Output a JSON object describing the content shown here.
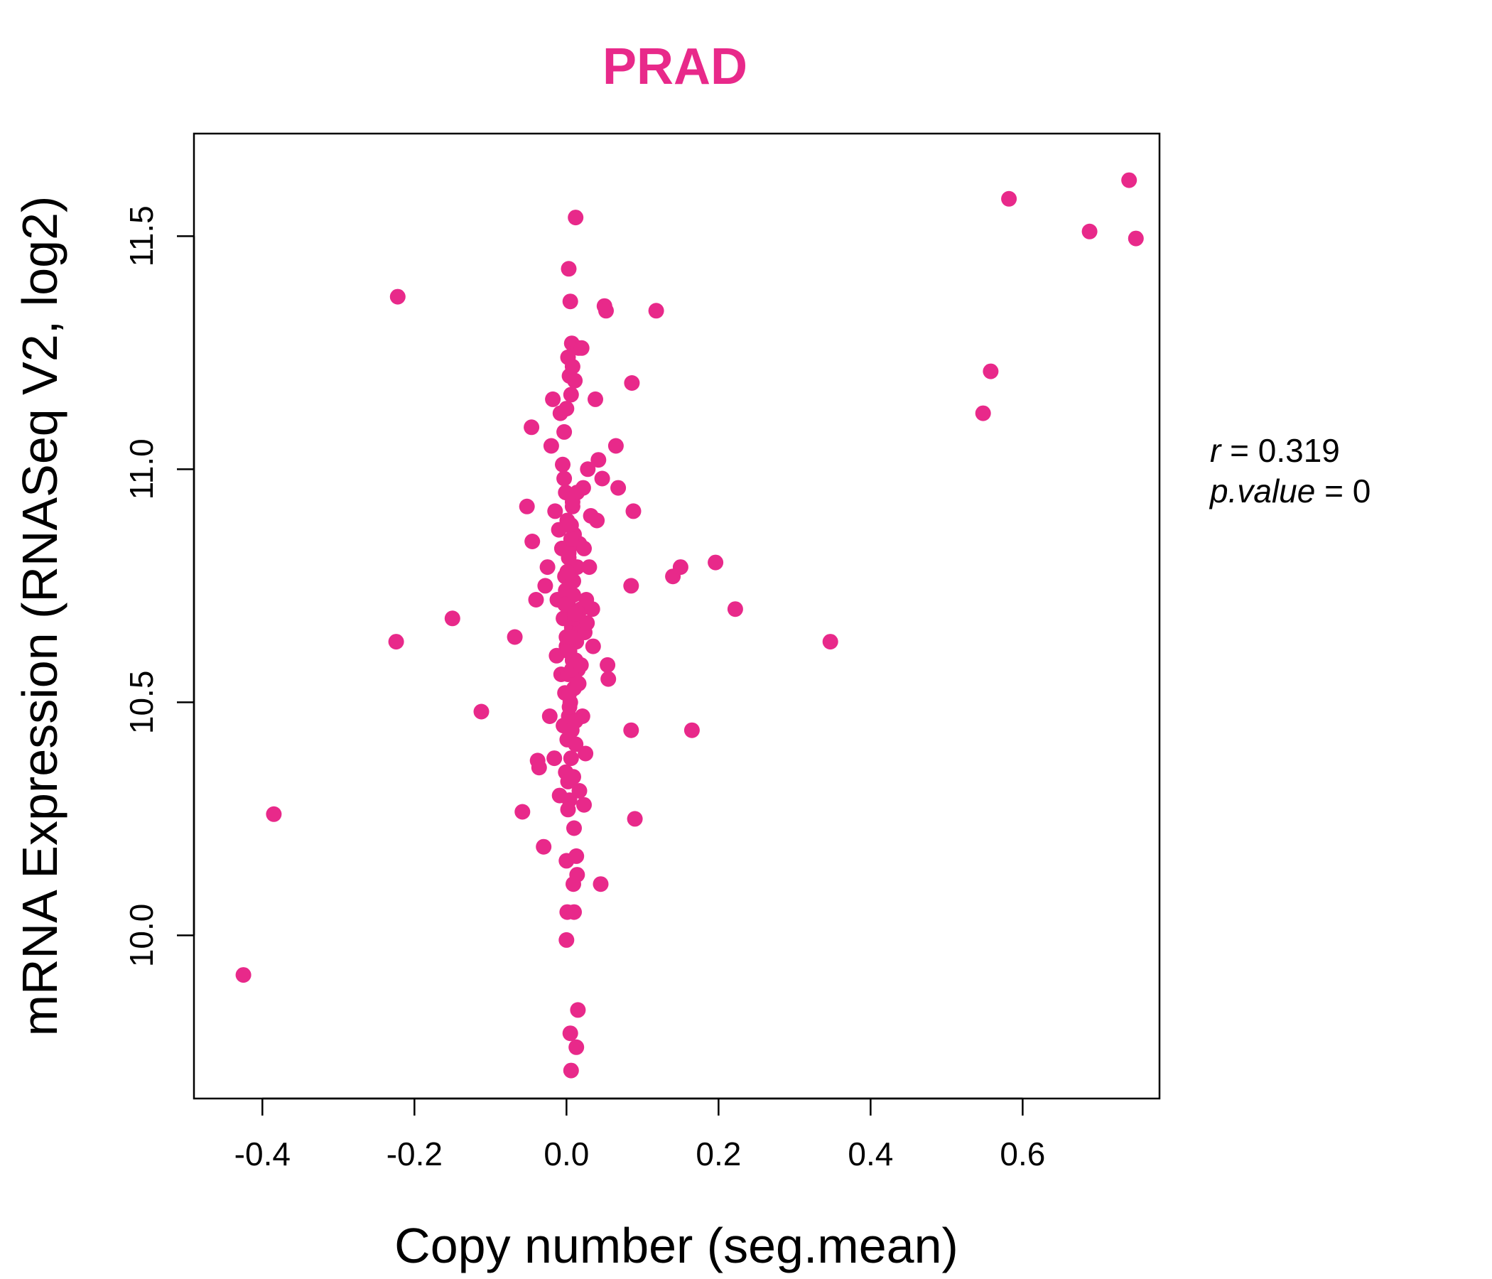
{
  "chart_data": {
    "type": "scatter",
    "title": "PRAD",
    "xlabel": "Copy number (seg.mean)",
    "ylabel": "mRNA Expression (RNASeq V2, log2)",
    "xlim": [
      -0.49,
      0.78
    ],
    "ylim": [
      9.65,
      11.72
    ],
    "xticks": [
      "-0.4",
      "-0.2",
      "0.0",
      "0.2",
      "0.4",
      "0.6"
    ],
    "yticks": [
      "10.0",
      "10.5",
      "11.0",
      "11.5"
    ],
    "color": "#e8298a",
    "grid": false,
    "stats": {
      "r_label": "r",
      "r_value": "0.319",
      "p_label": "p.value",
      "p_value": "0"
    },
    "x": [
      -0.425,
      -0.385,
      -0.222,
      -0.224,
      -0.15,
      -0.112,
      -0.068,
      -0.058,
      -0.052,
      -0.046,
      -0.045,
      -0.04,
      -0.038,
      -0.036,
      -0.03,
      -0.028,
      -0.025,
      -0.022,
      -0.02,
      -0.018,
      -0.016,
      -0.015,
      -0.013,
      -0.012,
      -0.01,
      -0.009,
      -0.008,
      -0.007,
      -0.006,
      -0.005,
      -0.004,
      -0.004,
      -0.003,
      -0.003,
      -0.002,
      -0.002,
      -0.001,
      -0.001,
      0.0,
      0.0,
      0.0,
      0.0,
      0.001,
      0.001,
      0.001,
      0.002,
      0.002,
      0.002,
      0.002,
      0.003,
      0.003,
      0.003,
      0.004,
      0.004,
      0.004,
      0.005,
      0.005,
      0.005,
      0.006,
      0.006,
      0.006,
      0.007,
      0.007,
      0.007,
      0.008,
      0.008,
      0.008,
      0.009,
      0.009,
      0.01,
      0.01,
      0.01,
      0.011,
      0.011,
      0.012,
      0.012,
      0.013,
      0.013,
      0.014,
      0.014,
      0.015,
      0.015,
      0.016,
      0.017,
      0.017,
      0.018,
      0.019,
      0.02,
      0.021,
      0.022,
      0.023,
      0.024,
      0.025,
      0.026,
      0.028,
      0.03,
      0.032,
      0.034,
      0.035,
      0.038,
      0.04,
      0.042,
      0.045,
      0.047,
      0.05,
      0.052,
      0.054,
      0.055,
      0.065,
      0.068,
      0.085,
      0.085,
      0.086,
      0.088,
      0.09,
      0.118,
      0.14,
      0.15,
      0.165,
      0.196,
      0.222,
      0.347,
      0.548,
      0.558,
      0.582,
      0.688,
      0.74,
      0.749,
      0.013,
      0.005,
      0.006,
      0.002,
      0.009,
      0.01,
      0.012,
      0.0,
      0.004,
      -0.001,
      0.003,
      0.008,
      0.011,
      0.007,
      0.004,
      0.001,
      0.002,
      0.006,
      0.009,
      0.014,
      0.019,
      0.023,
      0.027,
      0.016,
      0.012,
      0.003,
      -0.002,
      0.005,
      0.008,
      0.011
    ],
    "y": [
      9.915,
      10.26,
      11.37,
      10.63,
      10.68,
      10.48,
      10.64,
      10.265,
      10.92,
      11.09,
      10.845,
      10.72,
      10.375,
      10.36,
      10.19,
      10.75,
      10.79,
      10.47,
      11.05,
      11.15,
      10.38,
      10.91,
      10.6,
      10.72,
      10.87,
      10.3,
      11.12,
      10.56,
      10.83,
      11.01,
      10.45,
      10.68,
      10.98,
      11.08,
      10.52,
      10.77,
      10.35,
      10.95,
      9.99,
      10.16,
      10.64,
      11.13,
      10.05,
      10.42,
      10.89,
      11.24,
      10.56,
      10.71,
      10.33,
      11.43,
      10.47,
      10.82,
      11.2,
      10.61,
      10.29,
      11.36,
      10.73,
      10.5,
      11.16,
      10.88,
      10.38,
      11.27,
      10.66,
      10.44,
      11.22,
      10.59,
      10.92,
      10.11,
      10.76,
      10.05,
      10.53,
      10.86,
      11.19,
      10.69,
      11.54,
      10.41,
      10.17,
      10.63,
      10.13,
      10.79,
      9.84,
      10.57,
      11.26,
      10.84,
      10.31,
      10.66,
      10.7,
      11.26,
      10.47,
      10.96,
      10.28,
      10.65,
      10.39,
      10.72,
      11.0,
      10.79,
      10.9,
      10.7,
      10.62,
      11.15,
      10.89,
      11.02,
      10.11,
      10.98,
      11.35,
      11.34,
      10.58,
      10.55,
      11.05,
      10.96,
      10.44,
      10.75,
      11.185,
      10.91,
      10.25,
      11.34,
      10.77,
      10.79,
      10.44,
      10.8,
      10.7,
      10.63,
      11.12,
      11.21,
      11.58,
      11.51,
      11.62,
      11.495,
      9.76,
      9.79,
      9.71,
      10.27,
      10.34,
      10.23,
      10.59,
      10.62,
      10.52,
      10.74,
      10.81,
      10.93,
      10.68,
      10.57,
      10.49,
      10.78,
      10.61,
      10.85,
      10.73,
      10.95,
      10.58,
      10.83,
      10.67,
      10.54,
      10.46,
      10.88,
      10.71,
      10.64,
      10.76,
      10.69
    ]
  }
}
